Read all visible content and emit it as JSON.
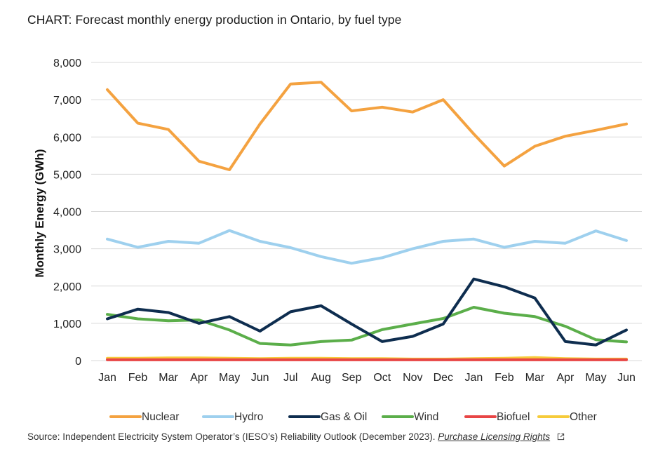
{
  "title": "CHART: Forecast monthly energy production in Ontario, by fuel type",
  "source": {
    "text": "Source: Independent Electricity System Operator’s (IESO’s) Reliability Outlook (December 2023).",
    "link_label": "Purchase Licensing Rights"
  },
  "icons": {
    "external": "external-link-icon"
  },
  "chart_data": {
    "type": "line",
    "ylabel": "Monthly Energy (GWh)",
    "xlabel": "",
    "ylim": [
      0,
      8000
    ],
    "y_ticks": [
      0,
      1000,
      2000,
      3000,
      4000,
      5000,
      6000,
      7000,
      8000
    ],
    "y_tick_labels": [
      "0",
      "1,000",
      "2,000",
      "3,000",
      "4,000",
      "5,000",
      "6,000",
      "7,000",
      "8,000"
    ],
    "grid": "horizontal",
    "legend_position": "bottom",
    "categories": [
      "Jan",
      "Feb",
      "Mar",
      "Apr",
      "May",
      "Jun",
      "Jul",
      "Aug",
      "Sep",
      "Oct",
      "Nov",
      "Dec",
      "Jan",
      "Feb",
      "Mar",
      "Apr",
      "May",
      "Jun"
    ],
    "series": [
      {
        "name": "Nuclear",
        "color": "#F4A240",
        "values": [
          7270,
          6370,
          6200,
          5350,
          5120,
          6350,
          7420,
          7470,
          6700,
          6800,
          6670,
          7000,
          6080,
          5220,
          5750,
          6020,
          6180,
          6350
        ]
      },
      {
        "name": "Hydro",
        "color": "#9ED0EE",
        "values": [
          3260,
          3040,
          3200,
          3150,
          3490,
          3200,
          3030,
          2790,
          2610,
          2760,
          3000,
          3200,
          3260,
          3040,
          3200,
          3150,
          3480,
          3220
        ]
      },
      {
        "name": "Gas & Oil",
        "color": "#0E2D4F",
        "values": [
          1120,
          1380,
          1290,
          1000,
          1180,
          790,
          1310,
          1470,
          980,
          510,
          650,
          980,
          2190,
          1980,
          1680,
          510,
          420,
          820
        ]
      },
      {
        "name": "Wind",
        "color": "#5BAE4A",
        "values": [
          1240,
          1120,
          1070,
          1090,
          820,
          460,
          420,
          510,
          550,
          830,
          980,
          1130,
          1430,
          1270,
          1180,
          920,
          560,
          500
        ]
      },
      {
        "name": "Biofuel",
        "color": "#E84545",
        "values": [
          20,
          20,
          20,
          20,
          20,
          20,
          20,
          20,
          20,
          20,
          20,
          20,
          20,
          20,
          20,
          20,
          20,
          20
        ]
      },
      {
        "name": "Other",
        "color": "#F6CB3A",
        "values": [
          60,
          60,
          70,
          70,
          60,
          50,
          60,
          60,
          50,
          50,
          40,
          40,
          50,
          60,
          80,
          50,
          40,
          40
        ]
      }
    ]
  }
}
